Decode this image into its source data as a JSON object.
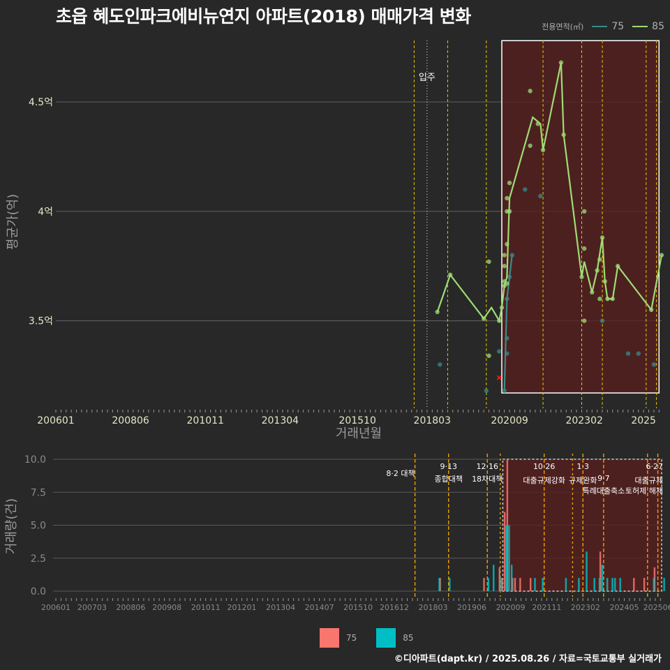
{
  "title": "초읍 혜도인파크에비뉴연지 아파트(2018) 매매가격 변화",
  "credit": "©디아파트(dapt.kr) / 2025.08.26 / 자료=국토교통부 실거래가",
  "colors": {
    "background": "#282828",
    "grid": "#5a5a5a",
    "text": "#ffffff",
    "axis_text": "#e6e6c8",
    "axis_title": "#9a9a9a",
    "line_75": "#3a8a8a",
    "line_85": "#9fdc75",
    "bar_75": "#f8766d",
    "bar_85": "#00bfc4",
    "policy_line": "#e6c800",
    "policy_line_bottom": "#f0a000",
    "highlight_fill": "#5a1e1e",
    "anomaly_marker": "#ff2020"
  },
  "legend_top": {
    "title": "전용면적(㎡)",
    "items": [
      {
        "label": "75",
        "color": "#3a8a8a"
      },
      {
        "label": "85",
        "color": "#9fdc75"
      }
    ]
  },
  "legend_bottom": {
    "items": [
      {
        "label": "75",
        "color": "#f8766d"
      },
      {
        "label": "85",
        "color": "#00bfc4"
      }
    ]
  },
  "chart_data": [
    {
      "type": "line",
      "xlabel": "거래년월",
      "ylabel": "평균가(억)",
      "xlim": [
        "2006-01",
        "2025-08"
      ],
      "ylim": [
        3.1,
        4.8
      ],
      "x_ticks": [
        "200601",
        "200806",
        "201011",
        "201304",
        "201510",
        "201803",
        "202009",
        "202302",
        "2025"
      ],
      "y_ticks": [
        {
          "value": 3.5,
          "label": "3.5억"
        },
        {
          "value": 4.0,
          "label": "4억"
        },
        {
          "value": 4.5,
          "label": "4.5억"
        }
      ],
      "grid": true,
      "legend_position": "top-right",
      "annotations": [
        {
          "label": "입주",
          "x": "2018-01"
        }
      ],
      "highlight_box": {
        "x": [
          "2020-06",
          "2025-07"
        ],
        "y": [
          3.17,
          4.78
        ]
      },
      "policy_lines": [
        "2017-08",
        "2018-09",
        "2019-12",
        "2021-10",
        "2023-01",
        "2023-09",
        "2025-02",
        "2025-06"
      ],
      "anomaly_points": [
        {
          "x": "2020-05",
          "y": 3.24
        }
      ],
      "series": [
        {
          "name": "75",
          "line": [
            {
              "x": "2020-07",
              "y": 3.18
            },
            {
              "x": "2020-08",
              "y": 3.6
            },
            {
              "x": "2020-09",
              "y": 3.7
            },
            {
              "x": "2020-10",
              "y": 3.8
            }
          ],
          "points": [
            {
              "x": "2018-06",
              "y": 3.3
            },
            {
              "x": "2019-12",
              "y": 3.18
            },
            {
              "x": "2020-05",
              "y": 3.36
            },
            {
              "x": "2020-07",
              "y": 3.18
            },
            {
              "x": "2020-08",
              "y": 3.35
            },
            {
              "x": "2020-08",
              "y": 3.42
            },
            {
              "x": "2020-08",
              "y": 3.6
            },
            {
              "x": "2020-09",
              "y": 3.7
            },
            {
              "x": "2020-10",
              "y": 3.8
            },
            {
              "x": "2021-03",
              "y": 4.1
            },
            {
              "x": "2021-09",
              "y": 4.07
            },
            {
              "x": "2023-09",
              "y": 3.5
            },
            {
              "x": "2024-07",
              "y": 3.35
            },
            {
              "x": "2024-11",
              "y": 3.35
            },
            {
              "x": "2025-05",
              "y": 3.3
            }
          ]
        },
        {
          "name": "85",
          "line": [
            {
              "x": "2018-05",
              "y": 3.54
            },
            {
              "x": "2018-10",
              "y": 3.71
            },
            {
              "x": "2019-11",
              "y": 3.51
            },
            {
              "x": "2020-02",
              "y": 3.56
            },
            {
              "x": "2020-05",
              "y": 3.5
            },
            {
              "x": "2020-06",
              "y": 3.56
            },
            {
              "x": "2020-07",
              "y": 3.66
            },
            {
              "x": "2020-08",
              "y": 3.7
            },
            {
              "x": "2020-09",
              "y": 4.06
            },
            {
              "x": "2021-06",
              "y": 4.43
            },
            {
              "x": "2021-09",
              "y": 4.4
            },
            {
              "x": "2021-10",
              "y": 4.28
            },
            {
              "x": "2022-05",
              "y": 4.68
            },
            {
              "x": "2022-06",
              "y": 4.35
            },
            {
              "x": "2023-01",
              "y": 3.7
            },
            {
              "x": "2023-02",
              "y": 3.77
            },
            {
              "x": "2023-05",
              "y": 3.63
            },
            {
              "x": "2023-07",
              "y": 3.73
            },
            {
              "x": "2023-09",
              "y": 3.88
            },
            {
              "x": "2023-10",
              "y": 3.68
            },
            {
              "x": "2023-11",
              "y": 3.6
            },
            {
              "x": "2024-01",
              "y": 3.6
            },
            {
              "x": "2024-03",
              "y": 3.75
            },
            {
              "x": "2025-04",
              "y": 3.55
            },
            {
              "x": "2025-08",
              "y": 3.8
            }
          ],
          "points": [
            {
              "x": "2018-05",
              "y": 3.54
            },
            {
              "x": "2018-10",
              "y": 3.71
            },
            {
              "x": "2019-11",
              "y": 3.51
            },
            {
              "x": "2020-01",
              "y": 3.77
            },
            {
              "x": "2020-01",
              "y": 3.34
            },
            {
              "x": "2020-05",
              "y": 3.5
            },
            {
              "x": "2020-06",
              "y": 3.56
            },
            {
              "x": "2020-07",
              "y": 3.66
            },
            {
              "x": "2020-07",
              "y": 3.68
            },
            {
              "x": "2020-07",
              "y": 3.75
            },
            {
              "x": "2020-07",
              "y": 3.8
            },
            {
              "x": "2020-08",
              "y": 3.67
            },
            {
              "x": "2020-08",
              "y": 3.85
            },
            {
              "x": "2020-08",
              "y": 4.0
            },
            {
              "x": "2020-08",
              "y": 4.06
            },
            {
              "x": "2020-09",
              "y": 4.0
            },
            {
              "x": "2020-09",
              "y": 4.13
            },
            {
              "x": "2021-05",
              "y": 4.55
            },
            {
              "x": "2021-05",
              "y": 4.3
            },
            {
              "x": "2021-08",
              "y": 4.4
            },
            {
              "x": "2021-10",
              "y": 4.28
            },
            {
              "x": "2022-05",
              "y": 4.68
            },
            {
              "x": "2022-06",
              "y": 4.35
            },
            {
              "x": "2023-01",
              "y": 3.7
            },
            {
              "x": "2023-02",
              "y": 3.5
            },
            {
              "x": "2023-02",
              "y": 3.83
            },
            {
              "x": "2023-02",
              "y": 4.0
            },
            {
              "x": "2023-05",
              "y": 3.63
            },
            {
              "x": "2023-07",
              "y": 3.73
            },
            {
              "x": "2023-08",
              "y": 3.6
            },
            {
              "x": "2023-08",
              "y": 3.78
            },
            {
              "x": "2023-09",
              "y": 3.88
            },
            {
              "x": "2023-10",
              "y": 3.68
            },
            {
              "x": "2023-11",
              "y": 3.6
            },
            {
              "x": "2024-01",
              "y": 3.6
            },
            {
              "x": "2024-03",
              "y": 3.75
            },
            {
              "x": "2025-04",
              "y": 3.55
            },
            {
              "x": "2025-08",
              "y": 3.8
            }
          ]
        }
      ]
    },
    {
      "type": "bar",
      "xlabel": "",
      "ylabel": "거래량(건)",
      "xlim": [
        "2006-01",
        "2025-08"
      ],
      "ylim": [
        0,
        10
      ],
      "x_ticks": [
        "200601",
        "200703",
        "200806",
        "200908",
        "201011",
        "201201",
        "201304",
        "201407",
        "201510",
        "201612",
        "201803",
        "201906",
        "202009",
        "202111",
        "202302",
        "202405",
        "202506"
      ],
      "y_ticks": [
        {
          "value": 0,
          "label": "0.0"
        },
        {
          "value": 2.5,
          "label": "2.5"
        },
        {
          "value": 5,
          "label": "5.0"
        },
        {
          "value": 7.5,
          "label": "7.5"
        },
        {
          "value": 10,
          "label": "10.0"
        }
      ],
      "grid": true,
      "highlight_box": {
        "x": [
          "2020-06",
          "2025-08"
        ],
        "y": [
          0,
          10
        ]
      },
      "policy_lines": [
        {
          "x": "2017-08",
          "date": "",
          "text": "8·2 대책"
        },
        {
          "x": "2018-09",
          "date": "9·13",
          "text": "종합대책"
        },
        {
          "x": "2019-12",
          "date": "12·16",
          "text": "18차대책"
        },
        {
          "x": "2020-05",
          "date": "",
          "text": ""
        },
        {
          "x": "2021-10",
          "date": "10·26",
          "text": "대출규제강화"
        },
        {
          "x": "2022-09",
          "date": "",
          "text": ""
        },
        {
          "x": "2023-01",
          "date": "1·3",
          "text": "규제완화"
        },
        {
          "x": "2023-09",
          "date": "9·7",
          "text": "특례대출축소"
        },
        {
          "x": "2025-02",
          "date": "",
          "text": "토허제 해제"
        },
        {
          "x": "2025-06",
          "date": "6·27",
          "text": "대출규제"
        }
      ],
      "series": [
        {
          "name": "75",
          "values": [
            {
              "x": "2018-06",
              "y": 1
            },
            {
              "x": "2019-11",
              "y": 1
            },
            {
              "x": "2020-05",
              "y": 1.8
            },
            {
              "x": "2020-06",
              "y": 1
            },
            {
              "x": "2020-07",
              "y": 6
            },
            {
              "x": "2020-08",
              "y": 10
            },
            {
              "x": "2020-10",
              "y": 1
            },
            {
              "x": "2020-11",
              "y": 1
            },
            {
              "x": "2021-01",
              "y": 1
            },
            {
              "x": "2021-05",
              "y": 1
            },
            {
              "x": "2023-08",
              "y": 3
            },
            {
              "x": "2024-09",
              "y": 1
            },
            {
              "x": "2025-01",
              "y": 1
            },
            {
              "x": "2025-05",
              "y": 1.8
            }
          ]
        },
        {
          "name": "85",
          "values": [
            {
              "x": "2018-05",
              "y": 1
            },
            {
              "x": "2018-09",
              "y": 1
            },
            {
              "x": "2019-12",
              "y": 1
            },
            {
              "x": "2020-02",
              "y": 2
            },
            {
              "x": "2020-05",
              "y": 1
            },
            {
              "x": "2020-07",
              "y": 5
            },
            {
              "x": "2020-08",
              "y": 5
            },
            {
              "x": "2020-09",
              "y": 2
            },
            {
              "x": "2021-06",
              "y": 1
            },
            {
              "x": "2021-09",
              "y": 1
            },
            {
              "x": "2022-06",
              "y": 1
            },
            {
              "x": "2022-11",
              "y": 1
            },
            {
              "x": "2023-02",
              "y": 3
            },
            {
              "x": "2023-05",
              "y": 1
            },
            {
              "x": "2023-07",
              "y": 1
            },
            {
              "x": "2023-08",
              "y": 2
            },
            {
              "x": "2023-10",
              "y": 1
            },
            {
              "x": "2023-12",
              "y": 1
            },
            {
              "x": "2024-01",
              "y": 1
            },
            {
              "x": "2024-03",
              "y": 1
            },
            {
              "x": "2025-04",
              "y": 1
            },
            {
              "x": "2025-08",
              "y": 1
            }
          ]
        }
      ]
    }
  ]
}
